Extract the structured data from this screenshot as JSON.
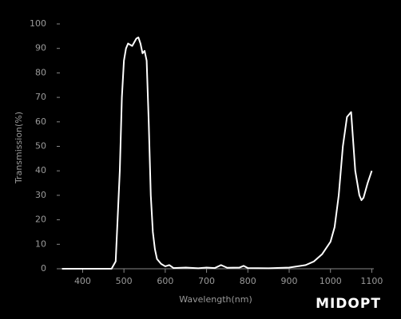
{
  "chart_data": {
    "type": "line",
    "x_label": "Wavelength(nm)",
    "y_label": "Transmission(%)",
    "logo": "MIDOPT",
    "xlim": [
      345,
      1105
    ],
    "ylim": [
      0,
      100
    ],
    "xticks": [
      400,
      500,
      600,
      700,
      800,
      900,
      1000,
      1100
    ],
    "yticks": [
      0,
      10,
      20,
      30,
      40,
      50,
      60,
      70,
      80,
      90,
      100
    ],
    "grid": false,
    "series": [
      {
        "color": "#ffffff",
        "x": [
          350,
          470,
          480,
          490,
          495,
          500,
          505,
          510,
          515,
          520,
          530,
          535,
          540,
          545,
          550,
          555,
          560,
          565,
          570,
          575,
          580,
          590,
          600,
          610,
          620,
          650,
          680,
          700,
          720,
          735,
          750,
          780,
          790,
          800,
          850,
          900,
          940,
          960,
          980,
          1000,
          1010,
          1020,
          1030,
          1040,
          1050,
          1060,
          1070,
          1075,
          1080,
          1090,
          1100
        ],
        "values": [
          0,
          0,
          3,
          40,
          70,
          85,
          90,
          92,
          91.5,
          91,
          94,
          94.5,
          92,
          88,
          89,
          85,
          60,
          30,
          15,
          8,
          4,
          2,
          1,
          1.5,
          0.3,
          0.5,
          0.2,
          0.5,
          0.3,
          1.5,
          0.4,
          0.5,
          1.2,
          0.3,
          0.2,
          0.5,
          1.5,
          3,
          6,
          11,
          17,
          30,
          50,
          62,
          64,
          40,
          30,
          28,
          29,
          35,
          40
        ]
      }
    ]
  }
}
